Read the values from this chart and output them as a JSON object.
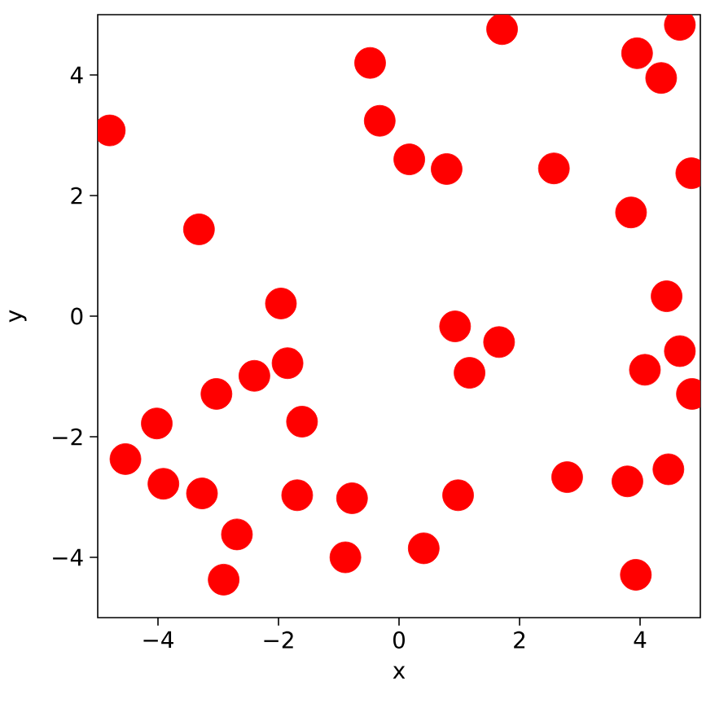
{
  "chart_data": {
    "type": "scatter",
    "xlabel": "x",
    "ylabel": "y",
    "x": [
      -4.8,
      -3.32,
      -0.48,
      -0.32,
      -1.96,
      0.17,
      0.79,
      1.71,
      2.57,
      3.95,
      4.35,
      4.66,
      4.85,
      3.85,
      4.44,
      0.93,
      1.66,
      1.17,
      4.66,
      4.08,
      4.86,
      4.47,
      3.79,
      2.79,
      0.98,
      0.41,
      3.93,
      -1.85,
      -2.4,
      -3.03,
      -4.02,
      -1.61,
      -4.54,
      -3.91,
      -3.27,
      -1.69,
      -0.78,
      -2.69,
      -0.89,
      -2.91
    ],
    "values": [
      3.08,
      1.44,
      4.2,
      3.24,
      0.21,
      2.6,
      2.44,
      4.76,
      2.45,
      4.36,
      3.95,
      4.83,
      2.37,
      1.72,
      0.33,
      -0.17,
      -0.43,
      -0.94,
      -0.58,
      -0.89,
      -1.29,
      -2.54,
      -2.74,
      -2.67,
      -2.97,
      -3.85,
      -4.29,
      -0.78,
      -0.99,
      -1.29,
      -1.78,
      -1.75,
      -2.37,
      -2.78,
      -2.94,
      -2.97,
      -3.02,
      -3.62,
      -4.0,
      -4.37
    ],
    "color": "#ff0000",
    "marker": "circle",
    "xlim": [
      -5,
      5
    ],
    "ylim": [
      -5,
      5
    ],
    "xticks": [
      {
        "value": -4,
        "label": "−4"
      },
      {
        "value": -2,
        "label": "−2"
      },
      0,
      2,
      4
    ],
    "yticks": [
      {
        "value": -4,
        "label": "−4"
      },
      {
        "value": -2,
        "label": "−2"
      },
      0,
      2,
      4
    ]
  }
}
